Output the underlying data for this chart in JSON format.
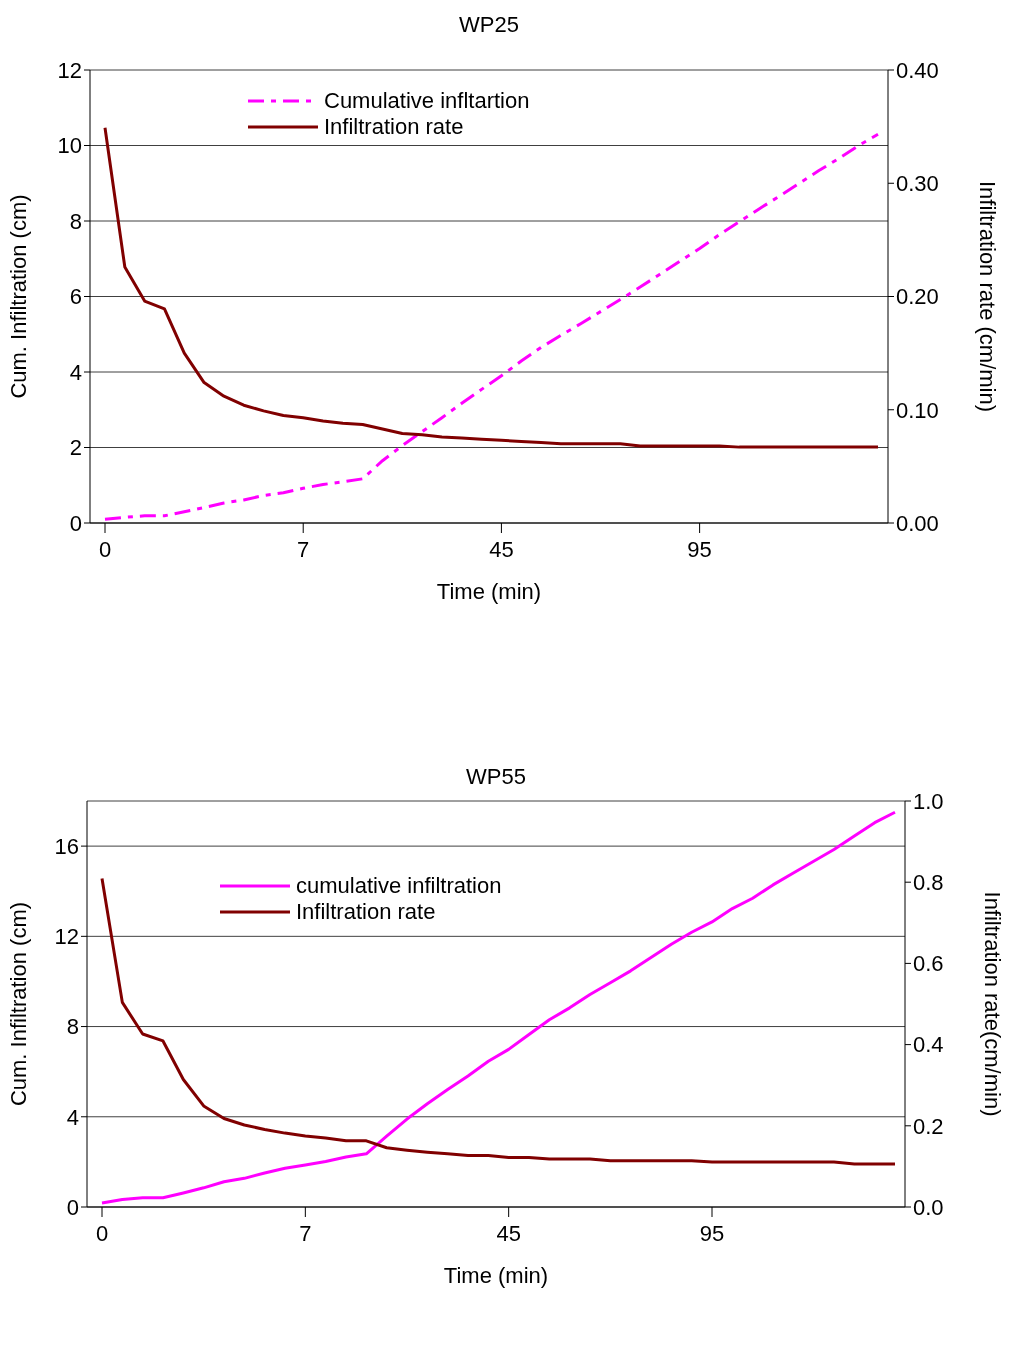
{
  "chart_data": [
    {
      "type": "line",
      "title": "WP25",
      "xlabel": "Time (min)",
      "ylabel": "Cum. Infiltration (cm)",
      "y2label": "Infiltration rate (cm/min)",
      "categories": [
        "0",
        null,
        null,
        null,
        null,
        null,
        null,
        null,
        null,
        null,
        "7",
        null,
        null,
        null,
        null,
        null,
        null,
        null,
        null,
        null,
        "45",
        null,
        null,
        null,
        null,
        null,
        null,
        null,
        null,
        null,
        "95",
        null,
        null,
        null,
        null,
        null,
        null,
        null,
        null,
        null
      ],
      "series": [
        {
          "name": "Cumulative infltartion",
          "color": "#ff00ff",
          "line_style": "dashed",
          "values": [
            0.1,
            0.15,
            0.19,
            0.19,
            0.3,
            0.41,
            0.53,
            0.61,
            0.73,
            0.8,
            0.92,
            1.02,
            1.09,
            1.17,
            1.65,
            2.05,
            2.42,
            2.79,
            3.17,
            3.54,
            3.9,
            4.29,
            4.65,
            4.97,
            5.28,
            5.6,
            5.92,
            6.25,
            6.59,
            6.93,
            7.27,
            7.64,
            7.98,
            8.32,
            8.65,
            8.99,
            9.33,
            9.65,
            9.99,
            10.3
          ]
        },
        {
          "name": "Infiltration rate",
          "color": "#800000",
          "line_style": "solid",
          "axis": "y2",
          "values": [
            0.349,
            0.226,
            0.196,
            0.189,
            0.15,
            0.124,
            0.112,
            0.104,
            0.099,
            0.095,
            0.093,
            0.09,
            0.088,
            0.087,
            0.083,
            0.079,
            0.078,
            0.076,
            0.075,
            0.074,
            0.073,
            0.072,
            0.071,
            0.07,
            0.07,
            0.07,
            0.07,
            0.068,
            0.068,
            0.068,
            0.068,
            0.068,
            0.067,
            0.067,
            0.067,
            0.067,
            0.067,
            0.067,
            0.067,
            0.067
          ]
        }
      ],
      "ylim": [
        0,
        12
      ],
      "yticks": [
        0,
        2,
        4,
        6,
        8,
        10,
        12
      ],
      "y2lim": [
        0,
        0.4
      ],
      "y2ticks": [
        {
          "value": 0,
          "label": "0.00"
        },
        {
          "value": 0.1,
          "label": "0.10"
        },
        {
          "value": 0.2,
          "label": "0.20"
        },
        {
          "value": 0.3,
          "label": "0.30"
        },
        {
          "value": 0.4,
          "label": "0.40"
        }
      ],
      "grid": "y",
      "legend": "top"
    },
    {
      "type": "line",
      "title": "WP55",
      "xlabel": "Time (min)",
      "ylabel": "Cum. Infiltration (cm)",
      "y2label": "Infiltration rate(cm/min)",
      "categories": [
        "0",
        null,
        null,
        null,
        null,
        null,
        null,
        null,
        null,
        null,
        "7",
        null,
        null,
        null,
        null,
        null,
        null,
        null,
        null,
        null,
        "45",
        null,
        null,
        null,
        null,
        null,
        null,
        null,
        null,
        null,
        "95",
        null,
        null,
        null,
        null,
        null,
        null,
        null,
        null,
        null
      ],
      "series": [
        {
          "name": "cumulative infiltration",
          "color": "#ff00ff",
          "line_style": "solid",
          "values": [
            0.18,
            0.33,
            0.41,
            0.41,
            0.62,
            0.85,
            1.12,
            1.27,
            1.51,
            1.72,
            1.86,
            2.02,
            2.22,
            2.36,
            3.14,
            3.9,
            4.58,
            5.21,
            5.81,
            6.46,
            6.99,
            7.65,
            8.3,
            8.83,
            9.42,
            9.94,
            10.47,
            11.06,
            11.65,
            12.18,
            12.64,
            13.23,
            13.69,
            14.28,
            14.81,
            15.33,
            15.85,
            16.45,
            17.04,
            17.5
          ]
        },
        {
          "name": "Infiltration rate",
          "color": "#800000",
          "line_style": "solid",
          "axis": "y2",
          "values": [
            0.809,
            0.504,
            0.426,
            0.409,
            0.314,
            0.249,
            0.218,
            0.202,
            0.191,
            0.182,
            0.175,
            0.17,
            0.163,
            0.163,
            0.146,
            0.14,
            0.135,
            0.131,
            0.127,
            0.127,
            0.122,
            0.122,
            0.118,
            0.118,
            0.118,
            0.114,
            0.114,
            0.114,
            0.114,
            0.114,
            0.111,
            0.111,
            0.111,
            0.111,
            0.111,
            0.111,
            0.111,
            0.106,
            0.106,
            0.106
          ]
        }
      ],
      "ylim": [
        0,
        18
      ],
      "yticks": [
        0,
        4,
        8,
        12,
        16
      ],
      "y2lim": [
        0,
        1
      ],
      "y2ticks": [
        {
          "value": 0,
          "label": "0.0"
        },
        {
          "value": 0.2,
          "label": "0.2"
        },
        {
          "value": 0.4,
          "label": "0.4"
        },
        {
          "value": 0.6,
          "label": "0.6"
        },
        {
          "value": 0.8,
          "label": "0.8"
        },
        {
          "value": 1,
          "label": "1.0"
        }
      ],
      "grid": "y",
      "legend": "top"
    }
  ]
}
